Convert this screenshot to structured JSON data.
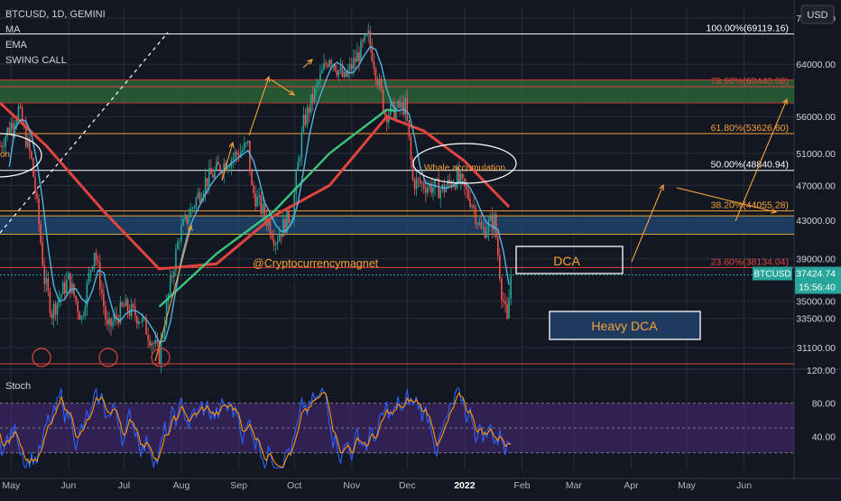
{
  "header": {
    "symbol_line": "BTCUSD, 1D, GEMINI",
    "indicators": [
      "MA",
      "EMA",
      "SWING CALL"
    ],
    "currency": "USD"
  },
  "watermark": "@Cryptocurrencymagnet",
  "colors": {
    "background": "#131722",
    "grid": "#2a2e39",
    "candle_up": "#26a69a",
    "candle_down": "#ef5350",
    "ma_red": "#e0443e",
    "ema_green": "#3cc47c",
    "short_ma_blue": "#4fb3e0",
    "fib_orange": "#f7a23b",
    "stoch_k": "#2962ff",
    "stoch_d": "#ff9800",
    "stoch_band": "#4a2a7a",
    "price_tag": "#26a69a"
  },
  "chart_data": [
    {
      "type": "candlestick",
      "title": "BTCUSD, 1D, GEMINI",
      "y_scale": "log",
      "ylim": [
        29500,
        74000
      ],
      "y_ticks": [
        "72000.00",
        "64000.00",
        "56000.00",
        "51000.00",
        "47000.00",
        "43000.00",
        "39000.00",
        "35000.00",
        "33500.00",
        "31100.00"
      ],
      "x_ticks": [
        "May",
        "Jun",
        "Jul",
        "Aug",
        "Sep",
        "Oct",
        "Nov",
        "Dec",
        "2022",
        "Feb",
        "Mar",
        "Apr",
        "May",
        "Jun"
      ],
      "x_range": [
        "2021-04-25",
        "2022-06-28"
      ],
      "last_price": "37424.74",
      "price_tag_label": "BTCUSD",
      "countdown": "15:56:40",
      "price_path": [
        [
          "2021-04-25",
          52000
        ],
        [
          "2021-05-05",
          57000
        ],
        [
          "2021-05-12",
          50000
        ],
        [
          "2021-05-19",
          37000
        ],
        [
          "2021-05-23",
          34000
        ],
        [
          "2021-06-01",
          37000
        ],
        [
          "2021-06-08",
          33500
        ],
        [
          "2021-06-15",
          40000
        ],
        [
          "2021-06-22",
          32500
        ],
        [
          "2021-07-01",
          34500
        ],
        [
          "2021-07-10",
          33500
        ],
        [
          "2021-07-20",
          30500
        ],
        [
          "2021-07-31",
          41500
        ],
        [
          "2021-08-14",
          47500
        ],
        [
          "2021-08-23",
          49500
        ],
        [
          "2021-09-06",
          52000
        ],
        [
          "2021-09-08",
          46500
        ],
        [
          "2021-09-21",
          41000
        ],
        [
          "2021-09-30",
          44000
        ],
        [
          "2021-10-06",
          55000
        ],
        [
          "2021-10-20",
          65500
        ],
        [
          "2021-10-28",
          61500
        ],
        [
          "2021-11-10",
          68500
        ],
        [
          "2021-11-19",
          56500
        ],
        [
          "2021-11-30",
          57500
        ],
        [
          "2021-12-04",
          47500
        ],
        [
          "2021-12-20",
          46500
        ],
        [
          "2021-12-28",
          48000
        ],
        [
          "2022-01-05",
          45000
        ],
        [
          "2022-01-10",
          41800
        ],
        [
          "2022-01-17",
          43000
        ],
        [
          "2022-01-21",
          36000
        ],
        [
          "2022-01-24",
          33000
        ],
        [
          "2022-01-26",
          37400
        ]
      ],
      "series": [
        {
          "name": "MA",
          "values": [
            [
              "2021-04-25",
              58000
            ],
            [
              "2021-05-20",
              52000
            ],
            [
              "2021-06-20",
              44000
            ],
            [
              "2021-07-20",
              38000
            ],
            [
              "2021-08-20",
              38500
            ],
            [
              "2021-09-20",
              43500
            ],
            [
              "2021-10-20",
              47000
            ],
            [
              "2021-11-20",
              56000
            ],
            [
              "2021-12-10",
              54000
            ],
            [
              "2022-01-01",
              50000
            ],
            [
              "2022-01-25",
              44500
            ]
          ]
        },
        {
          "name": "EMA",
          "values": [
            [
              "2021-07-20",
              34500
            ],
            [
              "2021-08-20",
              39500
            ],
            [
              "2021-09-20",
              44000
            ],
            [
              "2021-10-20",
              51000
            ],
            [
              "2021-11-20",
              57000
            ],
            [
              "2021-11-25",
              56800
            ]
          ]
        }
      ],
      "fib_levels": [
        {
          "ratio": "100.00%",
          "value": "69119.16"
        },
        {
          "ratio": "78.60%",
          "value": "60440.08"
        },
        {
          "ratio": "61.80%",
          "value": "53626.60"
        },
        {
          "ratio": "50.00%",
          "value": "48840.94"
        },
        {
          "ratio": "38.20%",
          "value": "44055.28"
        },
        {
          "ratio": "23.60%",
          "value": "38134.04"
        }
      ],
      "zones": [
        {
          "kind": "resistance",
          "from": 58000,
          "to": 61500
        },
        {
          "kind": "support",
          "from": 41500,
          "to": 43500
        }
      ],
      "annotations": [
        "DCA",
        "Heavy DCA",
        "Whale accumulation",
        "on"
      ]
    },
    {
      "type": "line",
      "title": "Stoch",
      "ylim": [
        0,
        120
      ],
      "y_ticks": [
        "120.00",
        "80.00",
        "40.00"
      ],
      "band": [
        20,
        80
      ]
    }
  ]
}
